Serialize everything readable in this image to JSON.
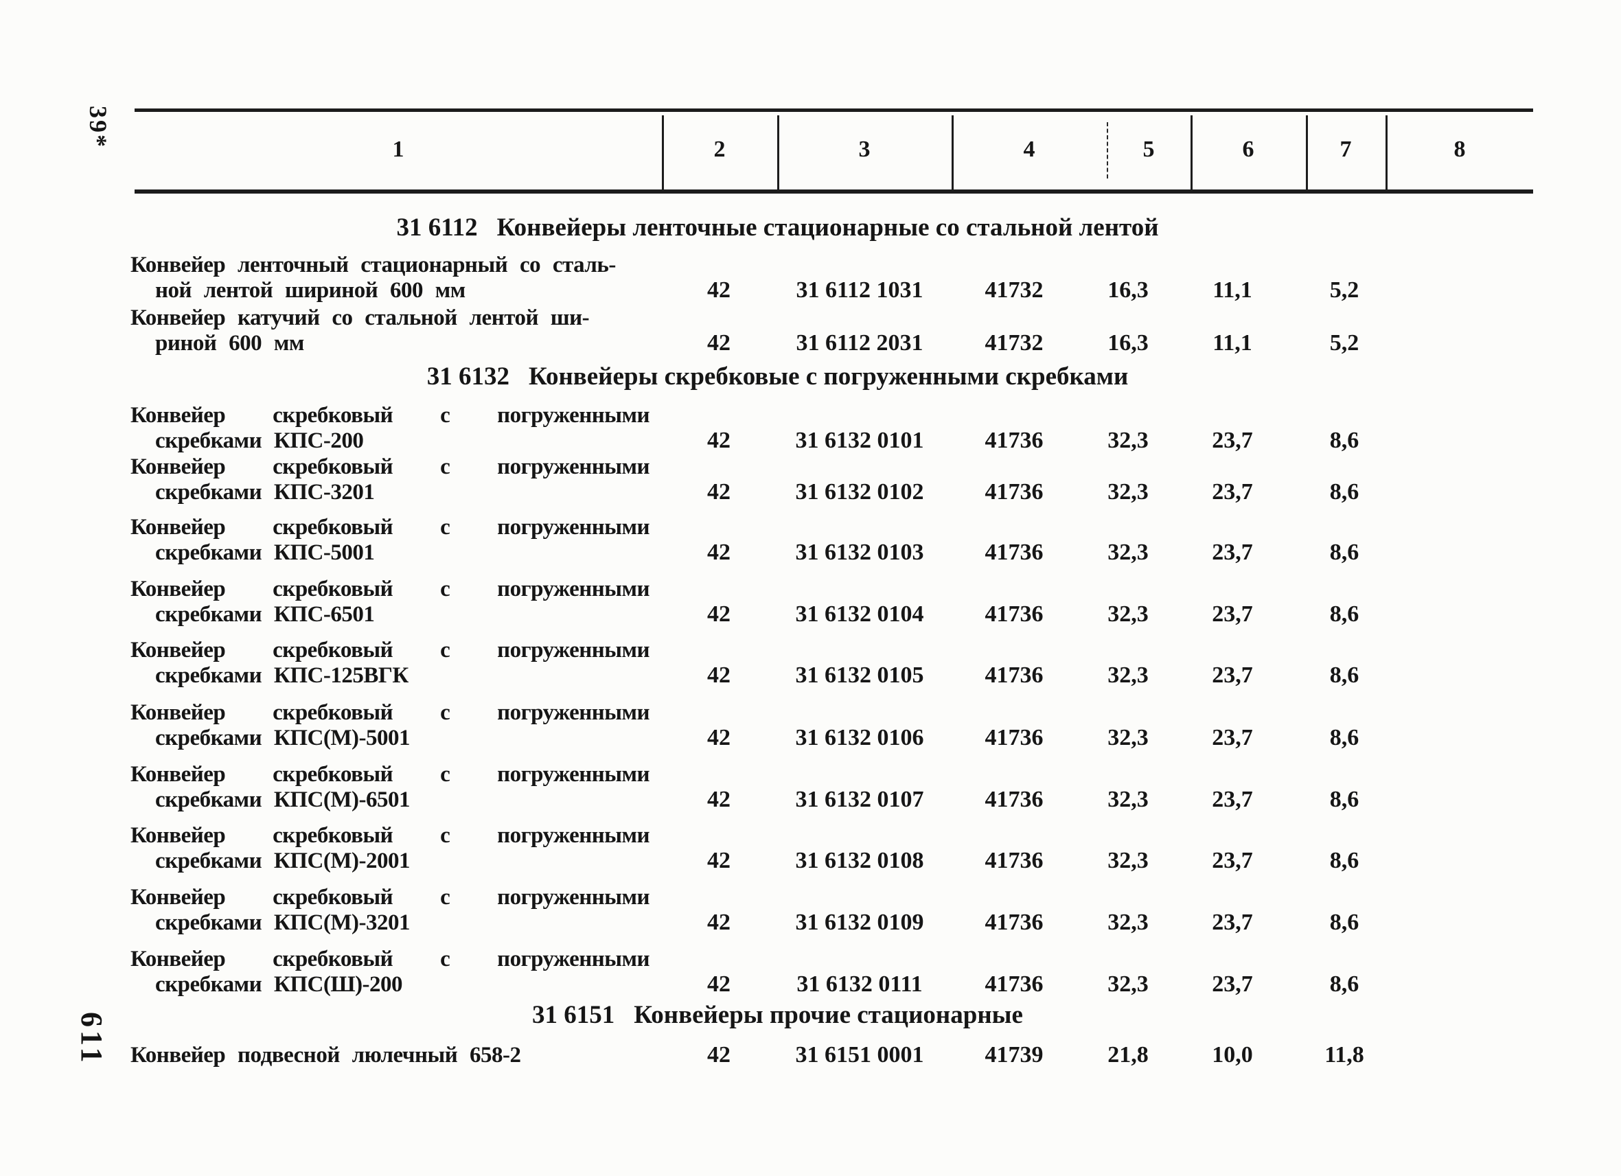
{
  "page": {
    "top_margin_note": "39*",
    "page_number": "611"
  },
  "table": {
    "column_headers": [
      "1",
      "2",
      "3",
      "4",
      "5",
      "6",
      "7",
      "8"
    ]
  },
  "sections": [
    {
      "code": "31 6112",
      "title": "Конвейеры ленточные стационарные со стальной лентой",
      "rows": [
        {
          "name": [
            "Конвейер ленточный стационарный со сталь-",
            "ной лентой шириной 600 мм"
          ],
          "values": [
            "42",
            "31 6112 1031",
            "41732",
            "16,3",
            "11,1",
            "5,2"
          ]
        },
        {
          "name": [
            "Конвейер катучий со стальной лентой ши-",
            "риной 600 мм"
          ],
          "values": [
            "42",
            "31 6112 2031",
            "41732",
            "16,3",
            "11,1",
            "5,2"
          ]
        }
      ]
    },
    {
      "code": "31 6132",
      "title": "Конвейеры скребковые с погруженными скребками",
      "rows": [
        {
          "name": [
            "Конвейер скребковый с погруженными",
            "скребками КПС-200"
          ],
          "values": [
            "42",
            "31 6132 0101",
            "41736",
            "32,3",
            "23,7",
            "8,6"
          ]
        },
        {
          "name": [
            "Конвейер скребковый с погруженными",
            "скребками КПС-3201"
          ],
          "values": [
            "42",
            "31 6132 0102",
            "41736",
            "32,3",
            "23,7",
            "8,6"
          ]
        },
        {
          "name": [
            "Конвейер скребковый с погруженными",
            "скребками КПС-5001"
          ],
          "values": [
            "42",
            "31 6132 0103",
            "41736",
            "32,3",
            "23,7",
            "8,6"
          ]
        },
        {
          "name": [
            "Конвейер скребковый с погруженными",
            "скребками КПС-6501"
          ],
          "values": [
            "42",
            "31 6132 0104",
            "41736",
            "32,3",
            "23,7",
            "8,6"
          ]
        },
        {
          "name": [
            "Конвейер скребковый с погруженными",
            "скребками КПС-125ВГК"
          ],
          "values": [
            "42",
            "31 6132 0105",
            "41736",
            "32,3",
            "23,7",
            "8,6"
          ]
        },
        {
          "name": [
            "Конвейер скребковый с погруженными",
            "скребками КПС(М)-5001"
          ],
          "values": [
            "42",
            "31 6132 0106",
            "41736",
            "32,3",
            "23,7",
            "8,6"
          ]
        },
        {
          "name": [
            "Конвейер скребковый с погруженными",
            "скребками КПС(М)-6501"
          ],
          "values": [
            "42",
            "31 6132 0107",
            "41736",
            "32,3",
            "23,7",
            "8,6"
          ]
        },
        {
          "name": [
            "Конвейер скребковый с погруженными",
            "скребками КПС(М)-2001"
          ],
          "values": [
            "42",
            "31 6132 0108",
            "41736",
            "32,3",
            "23,7",
            "8,6"
          ]
        },
        {
          "name": [
            "Конвейер скребковый с погруженными",
            "скребками КПС(М)-3201"
          ],
          "values": [
            "42",
            "31 6132 0109",
            "41736",
            "32,3",
            "23,7",
            "8,6"
          ]
        },
        {
          "name": [
            "Конвейер скребковый с погруженными",
            "скребками КПС(Ш)-200"
          ],
          "values": [
            "42",
            "31 6132 0111",
            "41736",
            "32,3",
            "23,7",
            "8,6"
          ]
        }
      ]
    },
    {
      "code": "31 6151",
      "title": "Конвейеры прочие стационарные",
      "rows": [
        {
          "name": [
            "Конвейер подвесной люлечный 658-2"
          ],
          "values": [
            "42",
            "31 6151 0001",
            "41739",
            "21,8",
            "10,0",
            "11,8"
          ]
        }
      ]
    }
  ]
}
